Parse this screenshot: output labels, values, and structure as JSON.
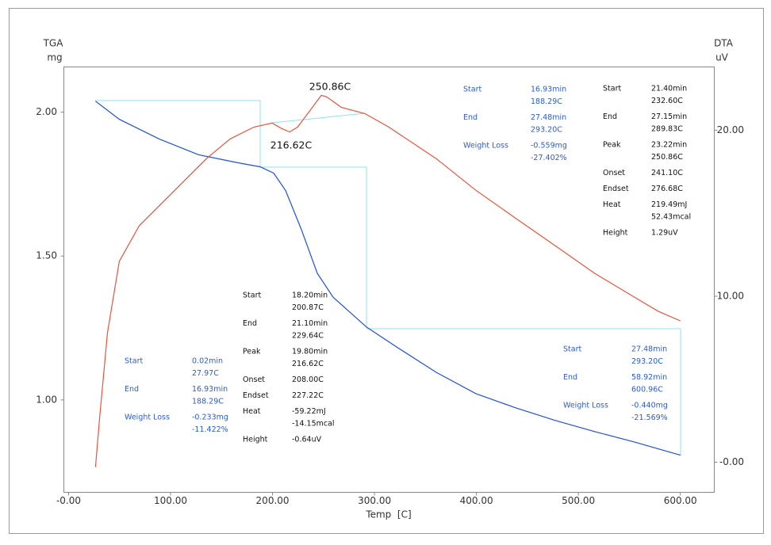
{
  "chart_data": {
    "type": "line",
    "x_label": "Temp  [C]",
    "y_label": "TGA",
    "y_unit": "mg",
    "y2_label": "DTA",
    "y2_unit": "uV",
    "xlim": [
      -4.66,
      633.3
    ],
    "ylim": [
      0.679,
      2.157
    ],
    "y2lim": [
      -1.81,
      23.81
    ],
    "xticks": [
      {
        "value": 0,
        "label": "-0.00"
      },
      {
        "value": 100,
        "label": "100.00"
      },
      {
        "value": 200,
        "label": "200.00"
      },
      {
        "value": 300,
        "label": "300.00"
      },
      {
        "value": 400,
        "label": "400.00"
      },
      {
        "value": 500,
        "label": "500.00"
      },
      {
        "value": 600,
        "label": "600.00"
      }
    ],
    "yticks": [
      {
        "value": 1,
        "label": "1.00"
      },
      {
        "value": 1.5,
        "label": "1.50"
      },
      {
        "value": 2,
        "label": "2.00"
      }
    ],
    "y2ticks": [
      {
        "value": 0,
        "label": "-0.00"
      },
      {
        "value": 10,
        "label": "10.00"
      },
      {
        "value": 20,
        "label": "20.00"
      }
    ],
    "series": [
      {
        "color": "#1f4fe0",
        "axis": "y",
        "x": [
          26.4,
          49.7,
          88.6,
          127.4,
          166.3,
          188.0,
          201.2,
          212.8,
          228.4,
          243.9,
          259.5,
          292.2,
          321.7,
          360.5,
          399.4,
          438.2,
          477.1,
          515.9,
          554.8,
          600
        ],
        "values": [
          2.038,
          1.975,
          1.907,
          1.852,
          1.824,
          1.81,
          1.788,
          1.728,
          1.591,
          1.44,
          1.357,
          1.253,
          1.184,
          1.096,
          1.022,
          0.973,
          0.929,
          0.89,
          0.854,
          0.808
        ]
      },
      {
        "color": "#e8543a",
        "axis": "y2",
        "x": [
          26.4,
          30.3,
          38.1,
          49.7,
          69.2,
          88.6,
          111.9,
          135.2,
          158.5,
          181.8,
          199.7,
          209.0,
          216.8,
          224.6,
          236.2,
          247.9,
          253.3,
          267.3,
          290.6,
          314.0,
          360.5,
          399.4,
          438.2,
          477.1,
          515.9,
          554.8,
          578.1,
          600
        ],
        "values": [
          -0.29,
          2.57,
          7.81,
          12.1,
          14.24,
          15.43,
          16.86,
          18.29,
          19.48,
          20.19,
          20.43,
          20.1,
          19.9,
          20.19,
          21.14,
          22.1,
          22.0,
          21.38,
          21.0,
          20.19,
          18.29,
          16.38,
          14.71,
          13.05,
          11.38,
          9.95,
          9.1,
          8.52
        ]
      }
    ],
    "peak_labels": [
      "250.86C",
      "216.62C"
    ],
    "annotations": [
      {
        "color": "#2a5bd7",
        "items": [
          {
            "label": "Start",
            "values": [
              "0.02min",
              "27.97C"
            ]
          },
          {
            "label": "End",
            "values": [
              "16.93min",
              "188.29C"
            ]
          },
          {
            "label": "Weight Loss",
            "values": [
              "-0.233mg",
              "-11.422%"
            ]
          }
        ]
      },
      {
        "color": "#111111",
        "items": [
          {
            "label": "Start",
            "values": [
              "18.20min",
              "200.87C"
            ]
          },
          {
            "label": "End",
            "values": [
              "21.10min",
              "229.64C"
            ]
          },
          {
            "label": "Peak",
            "values": [
              "19.80min",
              "216.62C"
            ]
          },
          {
            "label": "Onset",
            "values": [
              "208.00C"
            ]
          },
          {
            "label": "Endset",
            "values": [
              "227.22C"
            ]
          },
          {
            "label": "Heat",
            "values": [
              "-59.22mJ",
              "-14.15mcal"
            ]
          },
          {
            "label": "Height",
            "values": [
              "-0.64uV"
            ]
          }
        ]
      },
      {
        "color": "#2a5bd7",
        "items": [
          {
            "label": "Start",
            "values": [
              "16.93min",
              "188.29C"
            ]
          },
          {
            "label": "End",
            "values": [
              "27.48min",
              "293.20C"
            ]
          },
          {
            "label": "Weight Loss",
            "values": [
              "-0.559mg",
              "-27.402%"
            ]
          }
        ]
      },
      {
        "color": "#111111",
        "items": [
          {
            "label": "Start",
            "values": [
              "21.40min",
              "232.60C"
            ]
          },
          {
            "label": "End",
            "values": [
              "27.15min",
              "289.83C"
            ]
          },
          {
            "label": "Peak",
            "values": [
              "23.22min",
              "250.86C"
            ]
          },
          {
            "label": "Onset",
            "values": [
              "241.10C"
            ]
          },
          {
            "label": "Endset",
            "values": [
              "276.68C"
            ]
          },
          {
            "label": "Heat",
            "values": [
              "219.49mJ",
              "52.43mcal"
            ]
          },
          {
            "label": "Height",
            "values": [
              "1.29uV"
            ]
          }
        ]
      },
      {
        "color": "#2a5bd7",
        "items": [
          {
            "label": "Start",
            "values": [
              "27.48min",
              "293.20C"
            ]
          },
          {
            "label": "End",
            "values": [
              "58.92min",
              "600.96C"
            ]
          },
          {
            "label": "Weight Loss",
            "values": [
              "-0.440mg",
              "-21.569%"
            ]
          }
        ]
      }
    ]
  }
}
